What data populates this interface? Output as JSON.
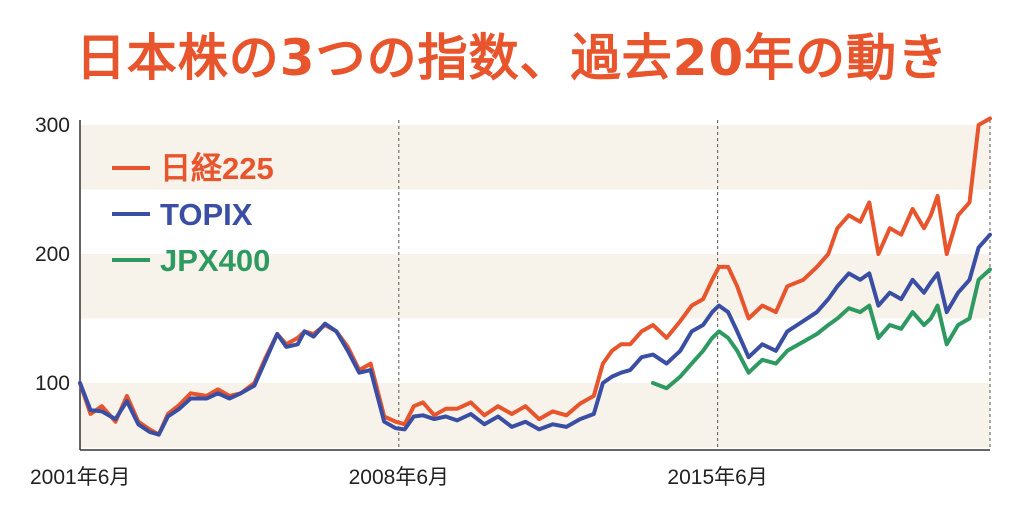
{
  "chart_data": {
    "type": "line",
    "title": "日本株の3つの指数、過去20年の動き",
    "xlabel": "",
    "ylabel": "",
    "ylim": [
      50,
      310
    ],
    "yticks": [
      100,
      200,
      300
    ],
    "xticks": [
      {
        "label": "2001年6月",
        "x": 2001.42
      },
      {
        "label": "2008年6月",
        "x": 2008.42
      },
      {
        "label": "2015年6月",
        "x": 2015.42
      }
    ],
    "xlim": [
      2001.42,
      2021.4
    ],
    "grid": "horizontal bands",
    "legend_position": "top-left",
    "series": [
      {
        "name": "日経225",
        "color": "#e8542c",
        "x": [
          2001.42,
          2001.65,
          2001.9,
          2002.2,
          2002.45,
          2002.7,
          2002.95,
          2003.15,
          2003.35,
          2003.6,
          2003.85,
          2004.2,
          2004.45,
          2004.7,
          2004.95,
          2005.25,
          2005.5,
          2005.75,
          2005.95,
          2006.2,
          2006.35,
          2006.55,
          2006.8,
          2007.05,
          2007.3,
          2007.55,
          2007.8,
          2008.1,
          2008.35,
          2008.55,
          2008.75,
          2008.95,
          2009.2,
          2009.45,
          2009.7,
          2010.0,
          2010.3,
          2010.6,
          2010.9,
          2011.2,
          2011.5,
          2011.8,
          2012.1,
          2012.4,
          2012.7,
          2012.9,
          2013.1,
          2013.3,
          2013.5,
          2013.75,
          2014.0,
          2014.3,
          2014.6,
          2014.85,
          2015.1,
          2015.3,
          2015.45,
          2015.65,
          2015.85,
          2016.1,
          2016.4,
          2016.7,
          2016.95,
          2017.3,
          2017.6,
          2017.85,
          2018.05,
          2018.3,
          2018.55,
          2018.75,
          2018.95,
          2019.2,
          2019.45,
          2019.7,
          2019.95,
          2020.1,
          2020.25,
          2020.45,
          2020.7,
          2020.95,
          2021.15,
          2021.4
        ],
        "values": [
          100,
          76,
          82,
          70,
          90,
          70,
          64,
          60,
          76,
          83,
          92,
          90,
          95,
          90,
          92,
          100,
          120,
          138,
          130,
          135,
          140,
          138,
          145,
          140,
          128,
          110,
          115,
          74,
          70,
          68,
          82,
          85,
          75,
          80,
          80,
          85,
          75,
          82,
          76,
          82,
          72,
          78,
          75,
          84,
          90,
          115,
          125,
          130,
          130,
          140,
          145,
          135,
          148,
          160,
          165,
          180,
          190,
          190,
          175,
          150,
          160,
          155,
          175,
          180,
          190,
          200,
          220,
          230,
          225,
          240,
          200,
          220,
          215,
          235,
          220,
          230,
          245,
          200,
          230,
          240,
          300,
          305
        ]
      },
      {
        "name": "TOPIX",
        "color": "#3a4fa3",
        "x": [
          2001.42,
          2001.65,
          2001.9,
          2002.2,
          2002.45,
          2002.7,
          2002.95,
          2003.15,
          2003.35,
          2003.6,
          2003.85,
          2004.2,
          2004.45,
          2004.7,
          2004.95,
          2005.25,
          2005.5,
          2005.75,
          2005.95,
          2006.2,
          2006.35,
          2006.55,
          2006.8,
          2007.05,
          2007.3,
          2007.55,
          2007.8,
          2008.1,
          2008.35,
          2008.55,
          2008.75,
          2008.95,
          2009.2,
          2009.45,
          2009.7,
          2010.0,
          2010.3,
          2010.6,
          2010.9,
          2011.2,
          2011.5,
          2011.8,
          2012.1,
          2012.4,
          2012.7,
          2012.9,
          2013.1,
          2013.3,
          2013.5,
          2013.75,
          2014.0,
          2014.3,
          2014.6,
          2014.85,
          2015.1,
          2015.3,
          2015.45,
          2015.65,
          2015.85,
          2016.1,
          2016.4,
          2016.7,
          2016.95,
          2017.3,
          2017.6,
          2017.85,
          2018.05,
          2018.3,
          2018.55,
          2018.75,
          2018.95,
          2019.2,
          2019.45,
          2019.7,
          2019.95,
          2020.1,
          2020.25,
          2020.45,
          2020.7,
          2020.95,
          2021.15,
          2021.4
        ],
        "values": [
          100,
          79,
          78,
          72,
          86,
          68,
          62,
          60,
          74,
          80,
          88,
          88,
          92,
          88,
          92,
          98,
          118,
          138,
          128,
          130,
          140,
          136,
          146,
          140,
          125,
          108,
          110,
          70,
          65,
          64,
          74,
          75,
          72,
          74,
          71,
          76,
          68,
          74,
          66,
          70,
          64,
          68,
          66,
          72,
          76,
          100,
          105,
          108,
          110,
          120,
          122,
          115,
          125,
          140,
          145,
          155,
          160,
          155,
          140,
          120,
          130,
          125,
          140,
          148,
          155,
          165,
          175,
          185,
          180,
          185,
          160,
          170,
          165,
          180,
          170,
          178,
          185,
          155,
          170,
          180,
          205,
          215
        ]
      },
      {
        "name": "JPX400",
        "color": "#2e9a62",
        "x": [
          2014.0,
          2014.3,
          2014.6,
          2014.85,
          2015.1,
          2015.3,
          2015.45,
          2015.65,
          2015.85,
          2016.1,
          2016.4,
          2016.7,
          2016.95,
          2017.3,
          2017.6,
          2017.85,
          2018.05,
          2018.3,
          2018.55,
          2018.75,
          2018.95,
          2019.2,
          2019.45,
          2019.7,
          2019.95,
          2020.1,
          2020.25,
          2020.45,
          2020.7,
          2020.95,
          2021.15,
          2021.4
        ],
        "values": [
          100,
          96,
          105,
          115,
          125,
          135,
          140,
          135,
          125,
          108,
          118,
          115,
          125,
          132,
          138,
          145,
          150,
          158,
          155,
          160,
          135,
          145,
          142,
          155,
          145,
          150,
          160,
          130,
          145,
          150,
          180,
          188
        ]
      }
    ]
  }
}
